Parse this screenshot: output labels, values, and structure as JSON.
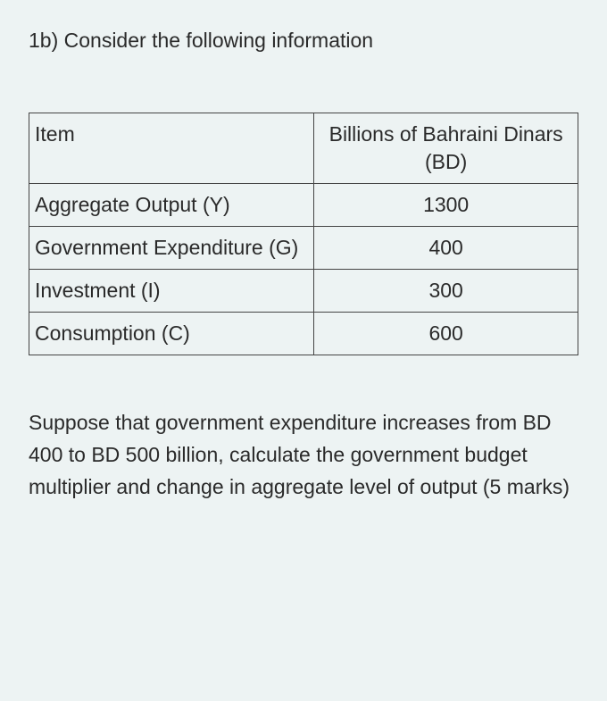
{
  "title": "1b) Consider the following information",
  "table": {
    "columns": [
      "Item",
      "Billions of Bahraini Dinars (BD)"
    ],
    "rows": [
      [
        "Aggregate Output (Y)",
        "1300"
      ],
      [
        "Government Expenditure (G)",
        "400"
      ],
      [
        "Investment (I)",
        "300"
      ],
      [
        "Consumption (C)",
        "600"
      ]
    ],
    "border_color": "#444444",
    "background_color": "#edf3f3",
    "text_color": "#2a2a2a",
    "font_size_pt": 17,
    "col_widths_pct": [
      52,
      48
    ],
    "col_align": [
      "left",
      "center"
    ]
  },
  "paragraph": "Suppose that government expenditure increases from BD 400 to BD 500 billion, calculate the government budget multiplier and change in aggregate level of output (5 marks)"
}
